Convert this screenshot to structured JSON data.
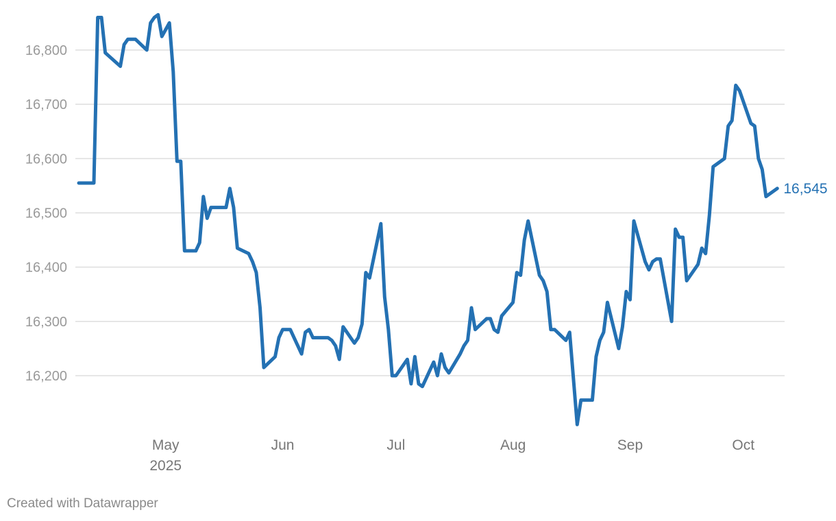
{
  "chart_data": {
    "type": "line",
    "title": "",
    "xlabel": "",
    "ylabel": "",
    "ylim": [
      16110,
      16870
    ],
    "yticks": [
      16200,
      16300,
      16400,
      16500,
      16600,
      16700,
      16800
    ],
    "ytick_labels": [
      "16,200",
      "16,300",
      "16,400",
      "16,500",
      "16,600",
      "16,700",
      "16,800"
    ],
    "xlim": [
      "2025-04-08",
      "2025-10-08"
    ],
    "xticks": [
      {
        "date": "2025-05-01",
        "label": "May",
        "sublabel": "2025"
      },
      {
        "date": "2025-06-01",
        "label": "Jun",
        "sublabel": ""
      },
      {
        "date": "2025-07-01",
        "label": "Jul",
        "sublabel": ""
      },
      {
        "date": "2025-08-01",
        "label": "Aug",
        "sublabel": ""
      },
      {
        "date": "2025-09-01",
        "label": "Sep",
        "sublabel": ""
      },
      {
        "date": "2025-10-01",
        "label": "Oct",
        "sublabel": ""
      }
    ],
    "grid": true,
    "line_color": "#2471b3",
    "end_label": "16,545",
    "series": [
      {
        "points": [
          [
            "2025-04-08",
            16555
          ],
          [
            "2025-04-09",
            16555
          ],
          [
            "2025-04-10",
            16555
          ],
          [
            "2025-04-11",
            16555
          ],
          [
            "2025-04-12",
            16555
          ],
          [
            "2025-04-13",
            16860
          ],
          [
            "2025-04-14",
            16860
          ],
          [
            "2025-04-15",
            16795
          ],
          [
            "2025-04-19",
            16770
          ],
          [
            "2025-04-20",
            16810
          ],
          [
            "2025-04-21",
            16820
          ],
          [
            "2025-04-22",
            16820
          ],
          [
            "2025-04-23",
            16820
          ],
          [
            "2025-04-26",
            16800
          ],
          [
            "2025-04-27",
            16850
          ],
          [
            "2025-04-28",
            16860
          ],
          [
            "2025-04-29",
            16865
          ],
          [
            "2025-04-30",
            16825
          ],
          [
            "2025-05-02",
            16850
          ],
          [
            "2025-05-03",
            16760
          ],
          [
            "2025-05-04",
            16595
          ],
          [
            "2025-05-05",
            16595
          ],
          [
            "2025-05-06",
            16430
          ],
          [
            "2025-05-09",
            16430
          ],
          [
            "2025-05-10",
            16445
          ],
          [
            "2025-05-11",
            16530
          ],
          [
            "2025-05-12",
            16490
          ],
          [
            "2025-05-13",
            16510
          ],
          [
            "2025-05-17",
            16510
          ],
          [
            "2025-05-18",
            16545
          ],
          [
            "2025-05-19",
            16510
          ],
          [
            "2025-05-20",
            16435
          ],
          [
            "2025-05-23",
            16425
          ],
          [
            "2025-05-24",
            16410
          ],
          [
            "2025-05-25",
            16390
          ],
          [
            "2025-05-26",
            16325
          ],
          [
            "2025-05-27",
            16215
          ],
          [
            "2025-05-30",
            16235
          ],
          [
            "2025-05-31",
            16270
          ],
          [
            "2025-06-01",
            16285
          ],
          [
            "2025-06-03",
            16285
          ],
          [
            "2025-06-06",
            16240
          ],
          [
            "2025-06-07",
            16280
          ],
          [
            "2025-06-08",
            16285
          ],
          [
            "2025-06-09",
            16270
          ],
          [
            "2025-06-13",
            16270
          ],
          [
            "2025-06-14",
            16265
          ],
          [
            "2025-06-15",
            16255
          ],
          [
            "2025-06-16",
            16230
          ],
          [
            "2025-06-17",
            16290
          ],
          [
            "2025-06-20",
            16260
          ],
          [
            "2025-06-21",
            16270
          ],
          [
            "2025-06-22",
            16295
          ],
          [
            "2025-06-23",
            16390
          ],
          [
            "2025-06-24",
            16380
          ],
          [
            "2025-06-27",
            16480
          ],
          [
            "2025-06-28",
            16345
          ],
          [
            "2025-06-29",
            16285
          ],
          [
            "2025-06-30",
            16200
          ],
          [
            "2025-07-01",
            16200
          ],
          [
            "2025-07-04",
            16230
          ],
          [
            "2025-07-05",
            16185
          ],
          [
            "2025-07-06",
            16235
          ],
          [
            "2025-07-07",
            16185
          ],
          [
            "2025-07-08",
            16180
          ],
          [
            "2025-07-11",
            16225
          ],
          [
            "2025-07-12",
            16200
          ],
          [
            "2025-07-13",
            16240
          ],
          [
            "2025-07-14",
            16215
          ],
          [
            "2025-07-15",
            16205
          ],
          [
            "2025-07-18",
            16240
          ],
          [
            "2025-07-19",
            16255
          ],
          [
            "2025-07-20",
            16265
          ],
          [
            "2025-07-21",
            16325
          ],
          [
            "2025-07-22",
            16285
          ],
          [
            "2025-07-25",
            16305
          ],
          [
            "2025-07-26",
            16305
          ],
          [
            "2025-07-27",
            16285
          ],
          [
            "2025-07-28",
            16280
          ],
          [
            "2025-07-29",
            16310
          ],
          [
            "2025-08-01",
            16335
          ],
          [
            "2025-08-02",
            16390
          ],
          [
            "2025-08-03",
            16385
          ],
          [
            "2025-08-04",
            16450
          ],
          [
            "2025-08-05",
            16485
          ],
          [
            "2025-08-08",
            16385
          ],
          [
            "2025-08-09",
            16375
          ],
          [
            "2025-08-10",
            16355
          ],
          [
            "2025-08-11",
            16285
          ],
          [
            "2025-08-12",
            16285
          ],
          [
            "2025-08-15",
            16265
          ],
          [
            "2025-08-16",
            16280
          ],
          [
            "2025-08-17",
            16195
          ],
          [
            "2025-08-18",
            16110
          ],
          [
            "2025-08-19",
            16155
          ],
          [
            "2025-08-22",
            16155
          ],
          [
            "2025-08-23",
            16235
          ],
          [
            "2025-08-24",
            16265
          ],
          [
            "2025-08-25",
            16280
          ],
          [
            "2025-08-26",
            16335
          ],
          [
            "2025-08-29",
            16250
          ],
          [
            "2025-08-30",
            16290
          ],
          [
            "2025-08-31",
            16355
          ],
          [
            "2025-09-01",
            16340
          ],
          [
            "2025-09-02",
            16485
          ],
          [
            "2025-09-05",
            16410
          ],
          [
            "2025-09-06",
            16395
          ],
          [
            "2025-09-07",
            16410
          ],
          [
            "2025-09-08",
            16415
          ],
          [
            "2025-09-09",
            16415
          ],
          [
            "2025-09-12",
            16300
          ],
          [
            "2025-09-13",
            16470
          ],
          [
            "2025-09-14",
            16455
          ],
          [
            "2025-09-15",
            16455
          ],
          [
            "2025-09-16",
            16375
          ],
          [
            "2025-09-19",
            16405
          ],
          [
            "2025-09-20",
            16435
          ],
          [
            "2025-09-21",
            16425
          ],
          [
            "2025-09-22",
            16495
          ],
          [
            "2025-09-23",
            16585
          ],
          [
            "2025-09-26",
            16600
          ],
          [
            "2025-09-27",
            16660
          ],
          [
            "2025-09-28",
            16670
          ],
          [
            "2025-09-29",
            16735
          ],
          [
            "2025-09-30",
            16725
          ],
          [
            "2025-10-03",
            16665
          ],
          [
            "2025-10-04",
            16660
          ],
          [
            "2025-10-05",
            16600
          ],
          [
            "2025-10-06",
            16580
          ],
          [
            "2025-10-07",
            16530
          ],
          [
            "2025-10-10",
            16545
          ]
        ]
      }
    ]
  },
  "footer": {
    "credit": "Created with Datawrapper"
  }
}
